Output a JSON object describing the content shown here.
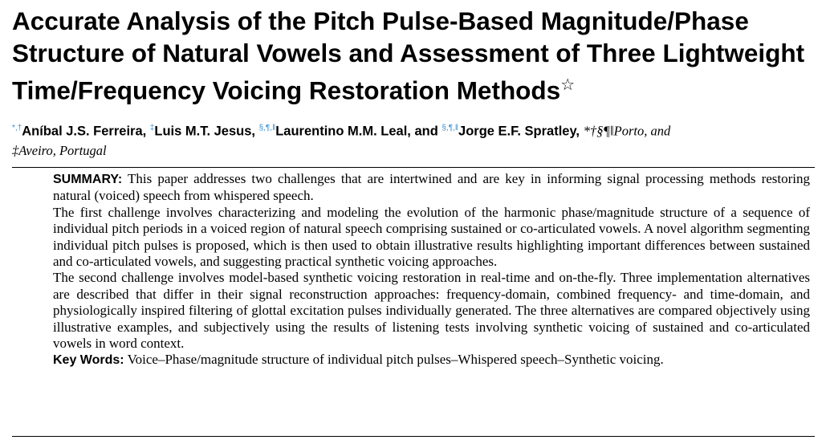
{
  "title": "Accurate Analysis of the Pitch Pulse-Based Magnitude/Phase Structure of Natural Vowels and Assessment of Three Lightweight Time/Frequency Voicing Restoration Methods",
  "title_mark": "☆",
  "authors": [
    {
      "marks": "*,†",
      "name": "Aníbal J.S. Ferreira, "
    },
    {
      "marks": "‡",
      "name": "Luis M.T. Jesus, "
    },
    {
      "marks": "§,¶,‖",
      "name": "Laurentino M.M. Leal, and "
    },
    {
      "marks": "§,¶,‖",
      "name": "Jorge E.F. Spratley, "
    }
  ],
  "affiliation_marks_1": "*†§¶‖",
  "affiliation_1": "Porto, and",
  "affiliation_marks_2": "‡",
  "affiliation_2": "Aveiro, Portugal",
  "summary_label": "SUMMARY:",
  "summary": [
    "This paper addresses two challenges that are intertwined and are key in informing signal processing methods restoring natural (voiced) speech from whispered speech.",
    "The first challenge involves characterizing and modeling the evolution of the harmonic phase/magnitude structure of a sequence of individual pitch periods in a voiced region of natural speech comprising sustained or co-articulated vowels. A novel algorithm segmenting individual pitch pulses is proposed, which is then used to obtain illustrative results highlighting important differences between sustained and co-articulated vowels, and suggesting practical synthetic voicing approaches.",
    "The second challenge involves model-based synthetic voicing restoration in real-time and on-the-fly. Three implementation alternatives are described that differ in their signal reconstruction approaches: frequency-domain, combined frequency- and time-domain, and physiologically inspired filtering of glottal excitation pulses individually generated. The three alternatives are compared objectively using illustrative examples, and subjectively using the results of listening tests involving synthetic voicing of sustained and co-articulated vowels in word context."
  ],
  "keywords_label": "Key Words:",
  "keywords": "Voice–Phase/magnitude structure of individual pitch pulses–Whispered speech–Synthetic voicing."
}
